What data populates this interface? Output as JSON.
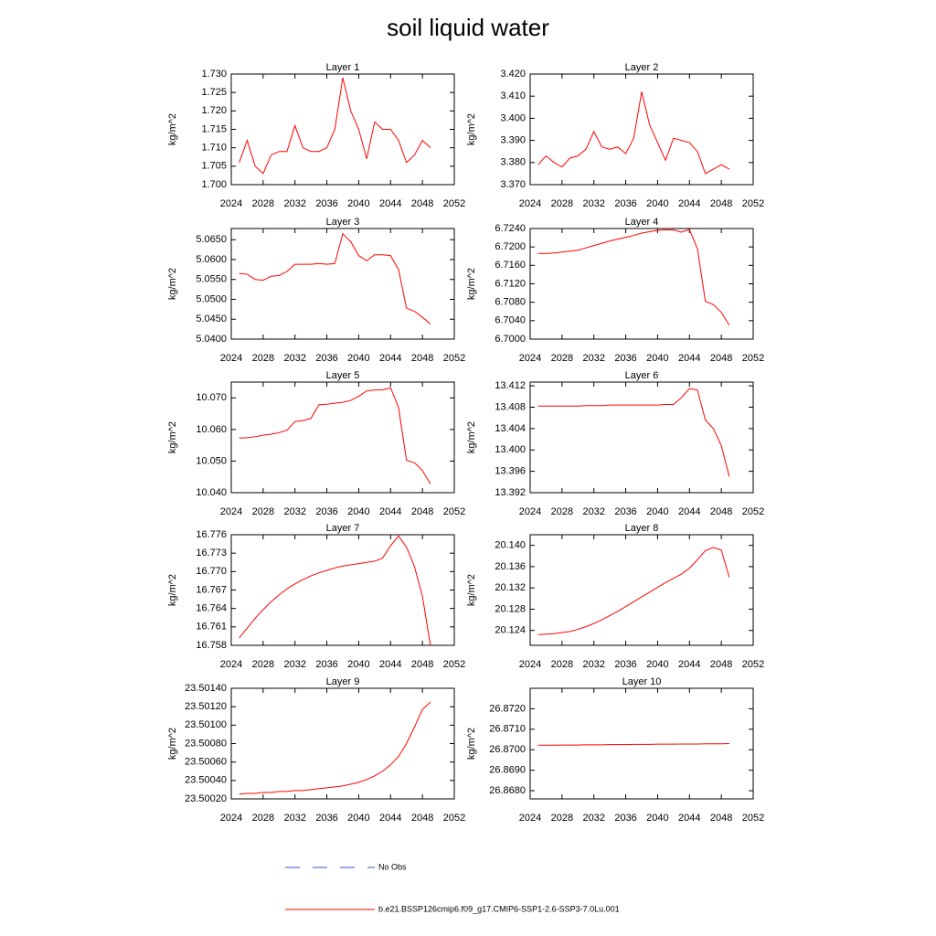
{
  "title": "soil liquid water",
  "legend": [
    {
      "name": "No Obs",
      "color": "#3355cc",
      "style": "dashed"
    },
    {
      "name": "b.e21.BSSP126cmip6.f09_g17.CMIP6-SSP1-2.6-SSP3-7.0Lu.001",
      "color": "#ff0000",
      "style": "solid"
    }
  ],
  "chart_data": [
    {
      "type": "line",
      "title": "Layer 1",
      "y_label": "kg/m^2",
      "x": [
        2025,
        2026,
        2027,
        2028,
        2029,
        2030,
        2031,
        2032,
        2033,
        2034,
        2035,
        2036,
        2037,
        2038,
        2039,
        2040,
        2041,
        2042,
        2043,
        2044,
        2045,
        2046,
        2047,
        2048,
        2049
      ],
      "series": [
        {
          "color": "#ff0000",
          "values": [
            1.706,
            1.712,
            1.705,
            1.703,
            1.708,
            1.709,
            1.709,
            1.716,
            1.71,
            1.709,
            1.709,
            1.71,
            1.715,
            1.729,
            1.72,
            1.715,
            1.707,
            1.717,
            1.715,
            1.715,
            1.712,
            1.706,
            1.708,
            1.712,
            1.71
          ]
        }
      ],
      "xlim": [
        2024,
        2052
      ],
      "xticks": [
        2024,
        2028,
        2032,
        2036,
        2040,
        2044,
        2048,
        2052
      ],
      "ylim": [
        1.7,
        1.73
      ],
      "yticks": [
        {
          "value": 1.7,
          "label": "1.700"
        },
        1.705,
        {
          "value": 1.71,
          "label": "1.710"
        },
        1.715,
        {
          "value": 1.72,
          "label": "1.720"
        },
        1.725,
        {
          "value": 1.73,
          "label": "1.730"
        }
      ]
    },
    {
      "type": "line",
      "title": "Layer 2",
      "y_label": "kg/m^2",
      "x": [
        2025,
        2026,
        2027,
        2028,
        2029,
        2030,
        2031,
        2032,
        2033,
        2034,
        2035,
        2036,
        2037,
        2038,
        2039,
        2040,
        2041,
        2042,
        2043,
        2044,
        2045,
        2046,
        2047,
        2048,
        2049
      ],
      "series": [
        {
          "color": "#ff0000",
          "values": [
            3.379,
            3.383,
            3.38,
            3.378,
            3.382,
            3.383,
            3.386,
            3.394,
            3.387,
            3.386,
            3.387,
            3.384,
            3.391,
            3.412,
            3.397,
            3.389,
            3.381,
            3.391,
            3.39,
            3.389,
            3.385,
            3.375,
            3.377,
            3.379,
            3.377
          ]
        }
      ],
      "xlim": [
        2024,
        2052
      ],
      "xticks": [
        2024,
        2028,
        2032,
        2036,
        2040,
        2044,
        2048,
        2052
      ],
      "ylim": [
        3.37,
        3.42
      ],
      "yticks": [
        {
          "value": 3.37,
          "label": "3.370"
        },
        {
          "value": 3.38,
          "label": "3.380"
        },
        {
          "value": 3.39,
          "label": "3.390"
        },
        {
          "value": 3.4,
          "label": "3.400"
        },
        {
          "value": 3.41,
          "label": "3.410"
        },
        {
          "value": 3.42,
          "label": "3.420"
        }
      ]
    },
    {
      "type": "line",
      "title": "Layer 3",
      "y_label": "kg/m^2",
      "x": [
        2025,
        2026,
        2027,
        2028,
        2029,
        2030,
        2031,
        2032,
        2033,
        2034,
        2035,
        2036,
        2037,
        2038,
        2039,
        2040,
        2041,
        2042,
        2043,
        2044,
        2045,
        2046,
        2047,
        2048,
        2049
      ],
      "series": [
        {
          "color": "#ff0000",
          "values": [
            5.0565,
            5.0563,
            5.055,
            5.0548,
            5.0558,
            5.056,
            5.057,
            5.0588,
            5.0588,
            5.0588,
            5.059,
            5.0588,
            5.059,
            5.0665,
            5.0645,
            5.061,
            5.0597,
            5.0612,
            5.0612,
            5.061,
            5.0575,
            5.0478,
            5.047,
            5.0455,
            5.0438
          ]
        }
      ],
      "xlim": [
        2024,
        2052
      ],
      "xticks": [
        2024,
        2028,
        2032,
        2036,
        2040,
        2044,
        2048,
        2052
      ],
      "ylim": [
        5.04,
        5.0678
      ],
      "yticks": [
        {
          "value": 5.04,
          "label": "5.0400"
        },
        {
          "value": 5.045,
          "label": "5.0450"
        },
        {
          "value": 5.05,
          "label": "5.0500"
        },
        {
          "value": 5.055,
          "label": "5.0550"
        },
        {
          "value": 5.06,
          "label": "5.0600"
        },
        {
          "value": 5.065,
          "label": "5.0650"
        }
      ]
    },
    {
      "type": "line",
      "title": "Layer 4",
      "y_label": "kg/m^2",
      "x": [
        2025,
        2026,
        2027,
        2028,
        2029,
        2030,
        2031,
        2032,
        2033,
        2034,
        2035,
        2036,
        2037,
        2038,
        2039,
        2040,
        2041,
        2042,
        2043,
        2044,
        2045,
        2046,
        2047,
        2048,
        2049
      ],
      "series": [
        {
          "color": "#ff0000",
          "values": [
            6.7186,
            6.7186,
            6.7187,
            6.7189,
            6.7191,
            6.7193,
            6.7198,
            6.7203,
            6.7208,
            6.7213,
            6.7217,
            6.7221,
            6.7225,
            6.723,
            6.7233,
            6.7236,
            6.7237,
            6.7237,
            6.7232,
            6.7238,
            6.7196,
            6.7082,
            6.7075,
            6.7058,
            6.703
          ]
        }
      ],
      "xlim": [
        2024,
        2052
      ],
      "xticks": [
        2024,
        2028,
        2032,
        2036,
        2040,
        2044,
        2048,
        2052
      ],
      "ylim": [
        6.7,
        6.724
      ],
      "yticks": [
        {
          "value": 6.7,
          "label": "6.7000"
        },
        {
          "value": 6.704,
          "label": "6.7040"
        },
        {
          "value": 6.708,
          "label": "6.7080"
        },
        {
          "value": 6.712,
          "label": "6.7120"
        },
        {
          "value": 6.716,
          "label": "6.7160"
        },
        {
          "value": 6.72,
          "label": "6.7200"
        },
        {
          "value": 6.724,
          "label": "6.7240"
        }
      ]
    },
    {
      "type": "line",
      "title": "Layer 5",
      "y_label": "kg/m^2",
      "x": [
        2025,
        2026,
        2027,
        2028,
        2029,
        2030,
        2031,
        2032,
        2033,
        2034,
        2035,
        2036,
        2037,
        2038,
        2039,
        2040,
        2041,
        2042,
        2043,
        2044,
        2045,
        2046,
        2047,
        2048,
        2049
      ],
      "series": [
        {
          "color": "#ff0000",
          "values": [
            10.0573,
            10.0574,
            10.0577,
            10.0582,
            10.0585,
            10.059,
            10.0598,
            10.0625,
            10.0628,
            10.0635,
            10.0678,
            10.068,
            10.0683,
            10.0686,
            10.0692,
            10.0705,
            10.0722,
            10.0725,
            10.0725,
            10.0732,
            10.067,
            10.0502,
            10.0495,
            10.047,
            10.0428
          ]
        }
      ],
      "xlim": [
        2024,
        2052
      ],
      "xticks": [
        2024,
        2028,
        2032,
        2036,
        2040,
        2044,
        2048,
        2052
      ],
      "ylim": [
        10.04,
        10.075
      ],
      "yticks": [
        {
          "value": 10.04,
          "label": "10.040"
        },
        {
          "value": 10.05,
          "label": "10.050"
        },
        {
          "value": 10.06,
          "label": "10.060"
        },
        {
          "value": 10.07,
          "label": "10.070"
        }
      ]
    },
    {
      "type": "line",
      "title": "Layer 6",
      "y_label": "kg/m^2",
      "x": [
        2025,
        2026,
        2027,
        2028,
        2029,
        2030,
        2031,
        2032,
        2033,
        2034,
        2035,
        2036,
        2037,
        2038,
        2039,
        2040,
        2041,
        2042,
        2043,
        2044,
        2045,
        2046,
        2047,
        2048,
        2049
      ],
      "series": [
        {
          "color": "#ff0000",
          "values": [
            13.4082,
            13.4082,
            13.4082,
            13.4082,
            13.4082,
            13.4082,
            13.4083,
            13.4083,
            13.4083,
            13.4084,
            13.4084,
            13.4084,
            13.4084,
            13.4084,
            13.4084,
            13.4084,
            13.4085,
            13.4085,
            13.4098,
            13.4115,
            13.4112,
            13.4056,
            13.404,
            13.4008,
            13.395
          ]
        }
      ],
      "xlim": [
        2024,
        2052
      ],
      "xticks": [
        2024,
        2028,
        2032,
        2036,
        2040,
        2044,
        2048,
        2052
      ],
      "ylim": [
        13.392,
        13.4127
      ],
      "yticks": [
        13.392,
        13.396,
        {
          "value": 13.4,
          "label": "13.400"
        },
        13.404,
        13.408,
        13.412
      ]
    },
    {
      "type": "line",
      "title": "Layer 7",
      "y_label": "kg/m^2",
      "x": [
        2025,
        2026,
        2027,
        2028,
        2029,
        2030,
        2031,
        2032,
        2033,
        2034,
        2035,
        2036,
        2037,
        2038,
        2039,
        2040,
        2041,
        2042,
        2043,
        2044,
        2045,
        2046,
        2047,
        2048,
        2049
      ],
      "series": [
        {
          "color": "#ff0000",
          "values": [
            16.7592,
            16.7608,
            16.7624,
            16.7638,
            16.7651,
            16.7662,
            16.7672,
            16.768,
            16.7687,
            16.7693,
            16.7698,
            16.7702,
            16.7706,
            16.7709,
            16.7711,
            16.7713,
            16.7715,
            16.7717,
            16.7722,
            16.7742,
            16.7758,
            16.774,
            16.7708,
            16.766,
            16.758
          ]
        }
      ],
      "xlim": [
        2024,
        2052
      ],
      "xticks": [
        2024,
        2028,
        2032,
        2036,
        2040,
        2044,
        2048,
        2052
      ],
      "ylim": [
        16.758,
        16.776
      ],
      "yticks": [
        16.758,
        16.761,
        16.764,
        16.767,
        {
          "value": 16.77,
          "label": "16.770"
        },
        16.773,
        16.776
      ]
    },
    {
      "type": "line",
      "title": "Layer 8",
      "y_label": "kg/m^2",
      "x": [
        2025,
        2026,
        2027,
        2028,
        2029,
        2030,
        2031,
        2032,
        2033,
        2034,
        2035,
        2036,
        2037,
        2038,
        2039,
        2040,
        2041,
        2042,
        2043,
        2044,
        2045,
        2046,
        2047,
        2048,
        2049
      ],
      "series": [
        {
          "color": "#ff0000",
          "values": [
            20.1232,
            20.1233,
            20.1234,
            20.1236,
            20.1238,
            20.1242,
            20.1247,
            20.1253,
            20.126,
            20.1268,
            20.1276,
            20.1285,
            20.1294,
            20.1303,
            20.1312,
            20.1321,
            20.133,
            20.1338,
            20.1346,
            20.1357,
            20.1373,
            20.139,
            20.1396,
            20.1391,
            20.134
          ]
        }
      ],
      "xlim": [
        2024,
        2052
      ],
      "xticks": [
        2024,
        2028,
        2032,
        2036,
        2040,
        2044,
        2048,
        2052
      ],
      "ylim": [
        20.1212,
        20.142
      ],
      "yticks": [
        20.124,
        20.128,
        20.132,
        20.136,
        {
          "value": 20.14,
          "label": "20.140"
        }
      ]
    },
    {
      "type": "line",
      "title": "Layer 9",
      "y_label": "kg/m^2",
      "x": [
        2025,
        2026,
        2027,
        2028,
        2029,
        2030,
        2031,
        2032,
        2033,
        2034,
        2035,
        2036,
        2037,
        2038,
        2039,
        2040,
        2041,
        2042,
        2043,
        2044,
        2045,
        2046,
        2047,
        2048,
        2049
      ],
      "series": [
        {
          "color": "#ff0000",
          "values": [
            23.50025,
            23.50026,
            23.50026,
            23.50027,
            23.50027,
            23.50028,
            23.50028,
            23.50029,
            23.50029,
            23.5003,
            23.50031,
            23.50032,
            23.50033,
            23.50034,
            23.50036,
            23.50038,
            23.50041,
            23.50045,
            23.5005,
            23.50057,
            23.50066,
            23.5008,
            23.50098,
            23.50117,
            23.50125
          ]
        }
      ],
      "xlim": [
        2024,
        2052
      ],
      "xticks": [
        2024,
        2028,
        2032,
        2036,
        2040,
        2044,
        2048,
        2052
      ],
      "ylim": [
        23.5002,
        23.5014
      ],
      "yticks": [
        {
          "value": 23.5002,
          "label": "23.50020"
        },
        {
          "value": 23.5004,
          "label": "23.50040"
        },
        {
          "value": 23.5006,
          "label": "23.50060"
        },
        {
          "value": 23.5008,
          "label": "23.50080"
        },
        {
          "value": 23.501,
          "label": "23.50100"
        },
        {
          "value": 23.5012,
          "label": "23.50120"
        },
        {
          "value": 23.5014,
          "label": "23.50140"
        }
      ]
    },
    {
      "type": "line",
      "title": "Layer 10",
      "y_label": "kg/m^2",
      "x": [
        2025,
        2026,
        2027,
        2028,
        2029,
        2030,
        2031,
        2032,
        2033,
        2034,
        2035,
        2036,
        2037,
        2038,
        2039,
        2040,
        2041,
        2042,
        2043,
        2044,
        2045,
        2046,
        2047,
        2048,
        2049
      ],
      "series": [
        {
          "color": "#ff0000",
          "values": [
            26.87022,
            26.87022,
            26.87022,
            26.87023,
            26.87023,
            26.87023,
            26.87024,
            26.87024,
            26.87024,
            26.87025,
            26.87025,
            26.87025,
            26.87026,
            26.87026,
            26.87026,
            26.87027,
            26.87027,
            26.87027,
            26.87028,
            26.87028,
            26.87028,
            26.87029,
            26.87029,
            26.87029,
            26.8703
          ]
        }
      ],
      "xlim": [
        2024,
        2052
      ],
      "xticks": [
        2024,
        2028,
        2032,
        2036,
        2040,
        2044,
        2048,
        2052
      ],
      "ylim": [
        26.8676,
        26.873
      ],
      "yticks": [
        {
          "value": 26.868,
          "label": "26.8680"
        },
        {
          "value": 26.869,
          "label": "26.8690"
        },
        {
          "value": 26.87,
          "label": "26.8700"
        },
        {
          "value": 26.871,
          "label": "26.8710"
        },
        {
          "value": 26.872,
          "label": "26.8720"
        }
      ]
    }
  ]
}
